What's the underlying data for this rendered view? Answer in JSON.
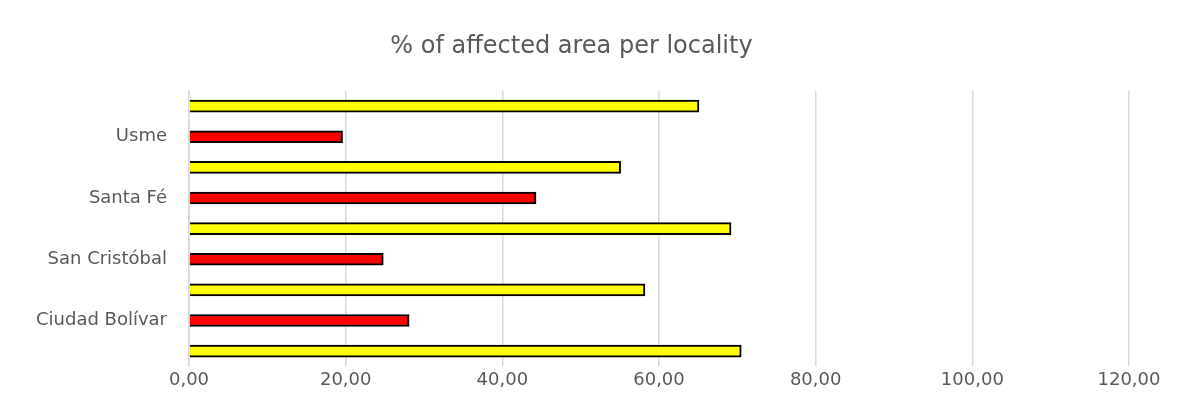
{
  "chart_data": {
    "type": "bar",
    "orientation": "horizontal",
    "title": "% of affected area per locality",
    "categories": [
      null,
      "Usme",
      null,
      "Santa Fé",
      null,
      "San Cristóbal",
      null,
      "Ciudad Bolívar",
      null
    ],
    "values": [
      65.1,
      19.6,
      55.1,
      44.3,
      69.2,
      24.8,
      58.2,
      28.1,
      70.5
    ],
    "colors": [
      "#ffff00",
      "#ff0000",
      "#ffff00",
      "#ff0000",
      "#ffff00",
      "#ff0000",
      "#ffff00",
      "#ff0000",
      "#ffff00"
    ],
    "xlim": [
      0,
      120
    ],
    "xticks": [
      {
        "value": 0,
        "label": "0,00"
      },
      {
        "value": 20,
        "label": "20,00"
      },
      {
        "value": 40,
        "label": "40,00"
      },
      {
        "value": 60,
        "label": "60,00"
      },
      {
        "value": 80,
        "label": "80,00"
      },
      {
        "value": 100,
        "label": "100,00"
      },
      {
        "value": 120,
        "label": "120,00"
      }
    ],
    "grid": "x",
    "legend": false
  }
}
